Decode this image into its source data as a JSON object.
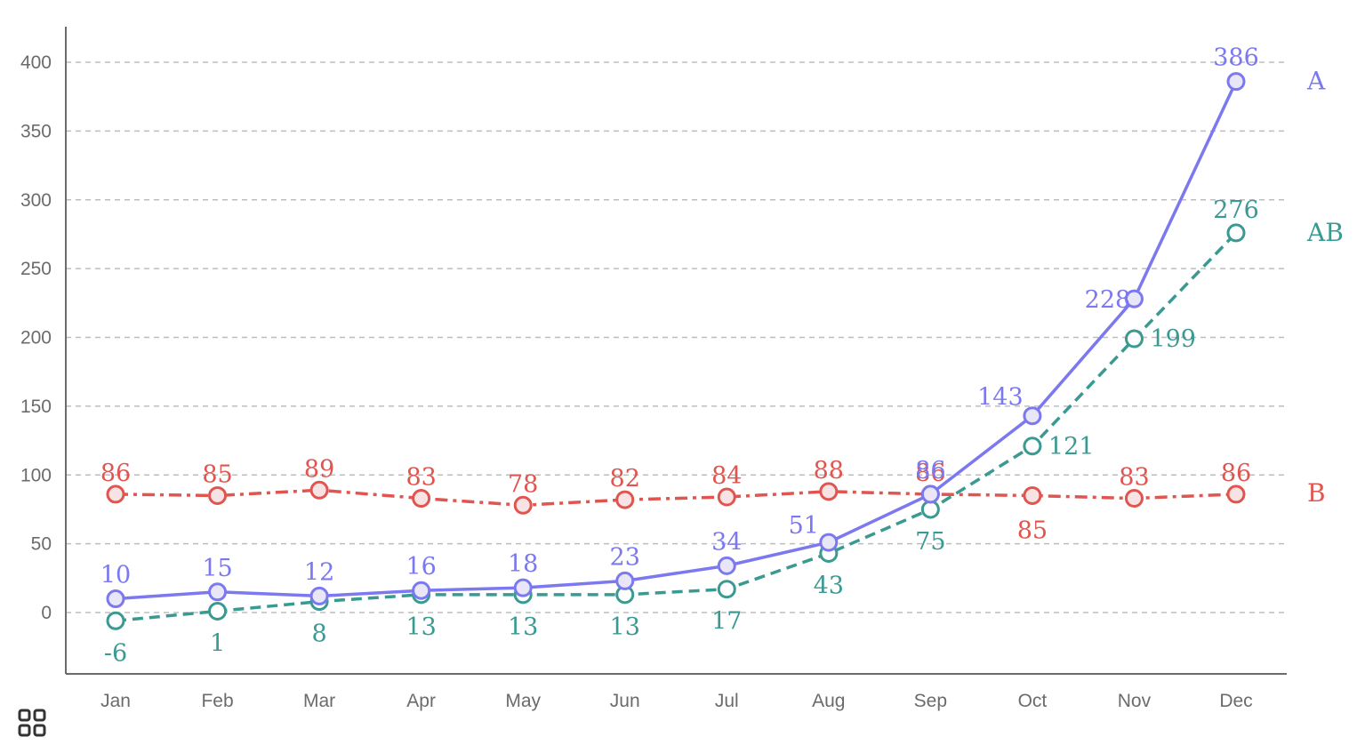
{
  "chart_data": {
    "type": "line",
    "categories": [
      "Jan",
      "Feb",
      "Mar",
      "Apr",
      "May",
      "Jun",
      "Jul",
      "Aug",
      "Sep",
      "Oct",
      "Nov",
      "Dec"
    ],
    "y_ticks": [
      "0",
      "50",
      "100",
      "150",
      "200",
      "250",
      "300",
      "350",
      "400"
    ],
    "ylim": [
      -45,
      425
    ],
    "grid": true,
    "series": [
      {
        "name": "A",
        "color": "#7b78f0",
        "line_style": "solid",
        "values": [
          10,
          15,
          12,
          16,
          18,
          23,
          34,
          51,
          86,
          143,
          228,
          386
        ]
      },
      {
        "name": "B",
        "color": "#e05550",
        "line_style": "dash-dot",
        "values": [
          86,
          85,
          89,
          83,
          78,
          82,
          84,
          88,
          86,
          85,
          83,
          86
        ]
      },
      {
        "name": "AB",
        "color": "#3a9a92",
        "line_style": "dashed",
        "values": [
          -6,
          1,
          8,
          13,
          13,
          13,
          17,
          43,
          75,
          121,
          199,
          276
        ]
      }
    ]
  },
  "toolbar": {
    "icon": "grid-menu-icon"
  }
}
